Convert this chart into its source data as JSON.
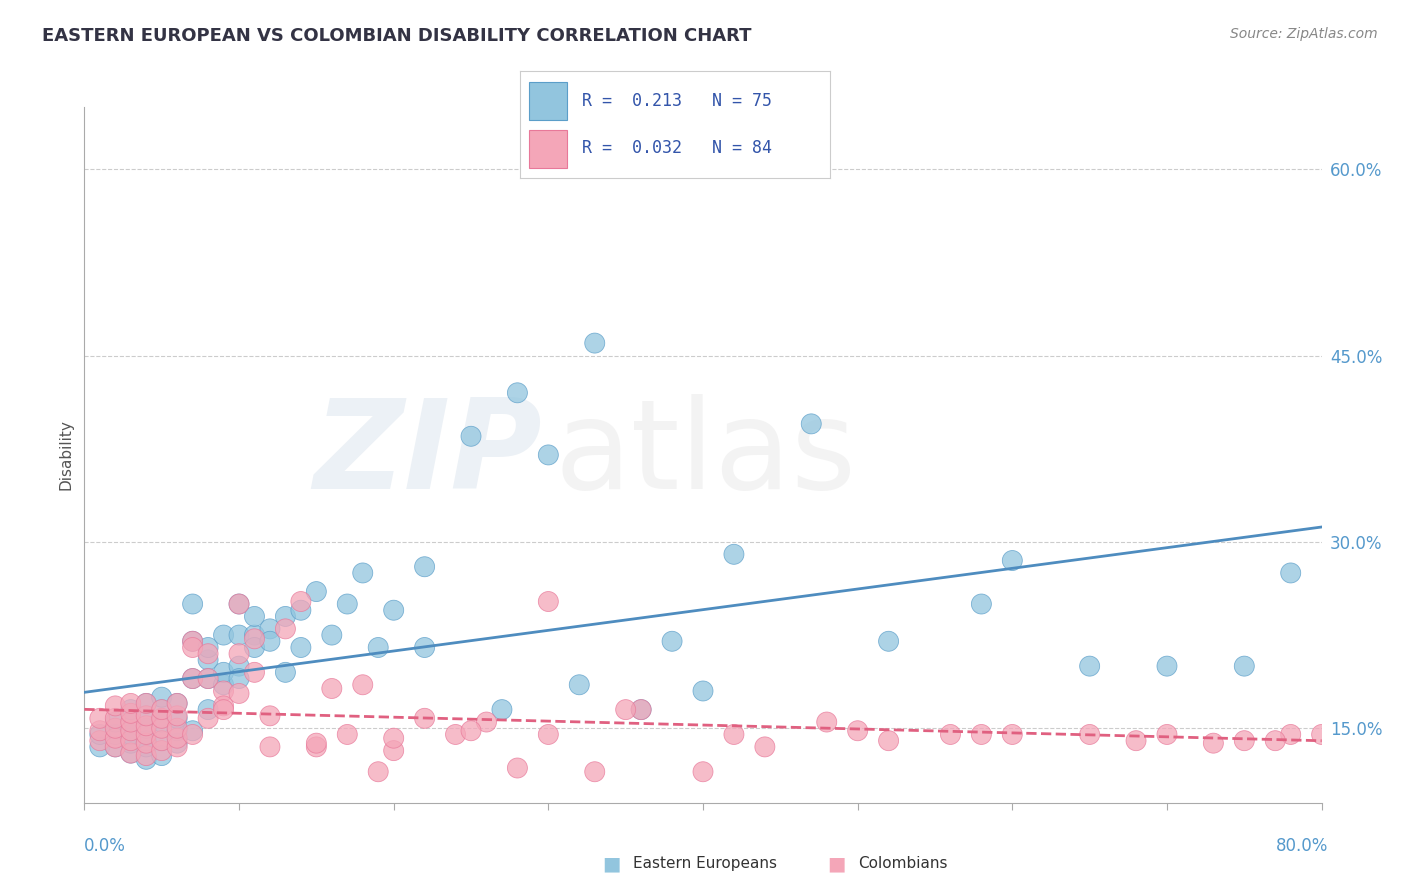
{
  "title": "EASTERN EUROPEAN VS COLOMBIAN DISABILITY CORRELATION CHART",
  "source": "Source: ZipAtlas.com",
  "ylabel": "Disability",
  "xlim": [
    0.0,
    0.8
  ],
  "ylim": [
    0.09,
    0.65
  ],
  "legend_R1": "R =  0.213",
  "legend_N1": "N = 75",
  "legend_R2": "R =  0.032",
  "legend_N2": "N = 84",
  "color_blue": "#92c5de",
  "color_pink": "#f4a6b8",
  "color_blue_dark": "#5b9ec9",
  "color_pink_dark": "#e87899",
  "color_blue_line": "#4e8cbf",
  "color_pink_line": "#e06080",
  "background_color": "#ffffff",
  "grid_color": "#cccccc",
  "blue_scatter_x": [
    0.01,
    0.01,
    0.02,
    0.02,
    0.02,
    0.03,
    0.03,
    0.03,
    0.03,
    0.03,
    0.04,
    0.04,
    0.04,
    0.04,
    0.04,
    0.04,
    0.05,
    0.05,
    0.05,
    0.05,
    0.05,
    0.06,
    0.06,
    0.06,
    0.06,
    0.07,
    0.07,
    0.07,
    0.07,
    0.08,
    0.08,
    0.08,
    0.08,
    0.09,
    0.09,
    0.09,
    0.1,
    0.1,
    0.1,
    0.1,
    0.11,
    0.11,
    0.11,
    0.12,
    0.12,
    0.13,
    0.13,
    0.14,
    0.14,
    0.15,
    0.16,
    0.17,
    0.18,
    0.19,
    0.2,
    0.22,
    0.25,
    0.28,
    0.3,
    0.33,
    0.38,
    0.42,
    0.47,
    0.52,
    0.58,
    0.6,
    0.65,
    0.7,
    0.75,
    0.78,
    0.22,
    0.27,
    0.32,
    0.36,
    0.4
  ],
  "blue_scatter_y": [
    0.135,
    0.145,
    0.135,
    0.145,
    0.155,
    0.13,
    0.138,
    0.145,
    0.155,
    0.165,
    0.125,
    0.135,
    0.14,
    0.15,
    0.16,
    0.17,
    0.128,
    0.14,
    0.155,
    0.165,
    0.175,
    0.138,
    0.148,
    0.158,
    0.17,
    0.148,
    0.22,
    0.25,
    0.19,
    0.165,
    0.205,
    0.215,
    0.19,
    0.185,
    0.225,
    0.195,
    0.2,
    0.225,
    0.19,
    0.25,
    0.225,
    0.215,
    0.24,
    0.23,
    0.22,
    0.24,
    0.195,
    0.245,
    0.215,
    0.26,
    0.225,
    0.25,
    0.275,
    0.215,
    0.245,
    0.28,
    0.385,
    0.42,
    0.37,
    0.46,
    0.22,
    0.29,
    0.395,
    0.22,
    0.25,
    0.285,
    0.2,
    0.2,
    0.2,
    0.275,
    0.215,
    0.165,
    0.185,
    0.165,
    0.18
  ],
  "pink_scatter_x": [
    0.01,
    0.01,
    0.01,
    0.02,
    0.02,
    0.02,
    0.02,
    0.02,
    0.03,
    0.03,
    0.03,
    0.03,
    0.03,
    0.03,
    0.04,
    0.04,
    0.04,
    0.04,
    0.04,
    0.04,
    0.05,
    0.05,
    0.05,
    0.05,
    0.05,
    0.06,
    0.06,
    0.06,
    0.06,
    0.06,
    0.07,
    0.07,
    0.07,
    0.07,
    0.08,
    0.08,
    0.08,
    0.09,
    0.09,
    0.09,
    0.1,
    0.1,
    0.1,
    0.11,
    0.11,
    0.12,
    0.12,
    0.13,
    0.14,
    0.15,
    0.16,
    0.17,
    0.18,
    0.19,
    0.2,
    0.22,
    0.24,
    0.26,
    0.28,
    0.3,
    0.33,
    0.36,
    0.4,
    0.44,
    0.48,
    0.52,
    0.56,
    0.6,
    0.65,
    0.7,
    0.75,
    0.78,
    0.8,
    0.35,
    0.42,
    0.5,
    0.58,
    0.68,
    0.73,
    0.77,
    0.15,
    0.2,
    0.25,
    0.3
  ],
  "pink_scatter_y": [
    0.14,
    0.148,
    0.158,
    0.135,
    0.142,
    0.15,
    0.158,
    0.168,
    0.13,
    0.14,
    0.148,
    0.155,
    0.162,
    0.17,
    0.128,
    0.138,
    0.145,
    0.152,
    0.16,
    0.17,
    0.132,
    0.14,
    0.15,
    0.158,
    0.165,
    0.135,
    0.142,
    0.15,
    0.16,
    0.17,
    0.145,
    0.22,
    0.215,
    0.19,
    0.158,
    0.21,
    0.19,
    0.18,
    0.168,
    0.165,
    0.21,
    0.25,
    0.178,
    0.195,
    0.222,
    0.135,
    0.16,
    0.23,
    0.252,
    0.135,
    0.182,
    0.145,
    0.185,
    0.115,
    0.132,
    0.158,
    0.145,
    0.155,
    0.118,
    0.252,
    0.115,
    0.165,
    0.115,
    0.135,
    0.155,
    0.14,
    0.145,
    0.145,
    0.145,
    0.145,
    0.14,
    0.145,
    0.145,
    0.165,
    0.145,
    0.148,
    0.145,
    0.14,
    0.138,
    0.14,
    0.138,
    0.142,
    0.148,
    0.145
  ]
}
